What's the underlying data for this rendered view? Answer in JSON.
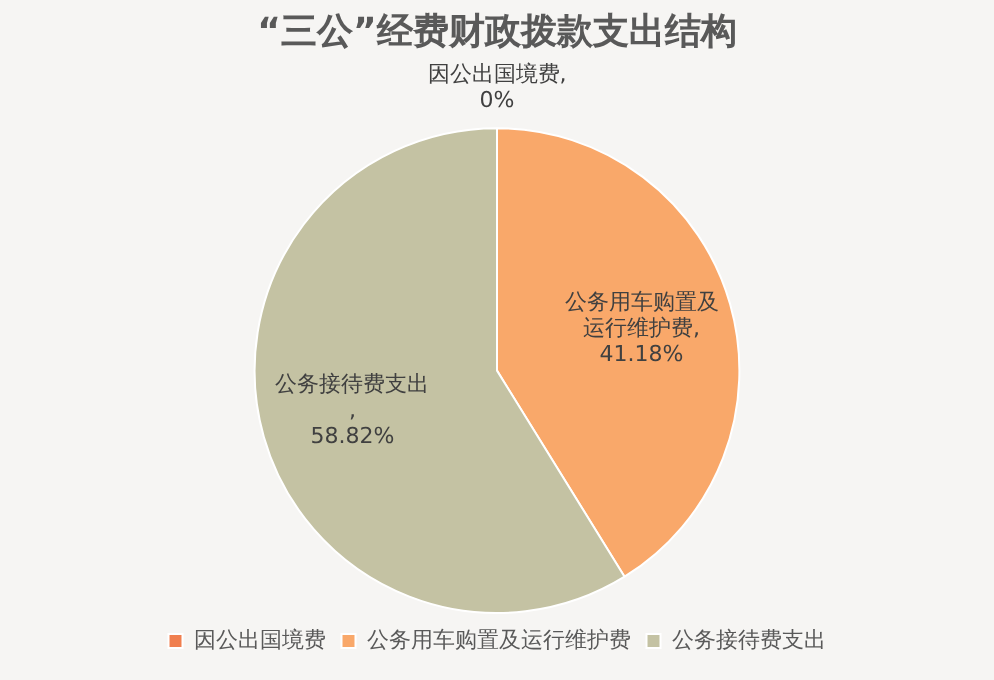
{
  "chart_data": {
    "type": "pie",
    "title": "“三公”经费财政拨款支出结构",
    "categories": [
      "因公出国境费",
      "公务用车购置及运行维护费",
      "公务接待费支出"
    ],
    "values": [
      0,
      41.18,
      58.82
    ],
    "value_labels": [
      "因公出国境费, 0%",
      "公务用车购置及运行维护费, 41.18%",
      "公务接待费支出, 58.82%"
    ],
    "colors": [
      "#f07f4f",
      "#f9a86a",
      "#c4c2a3"
    ],
    "legend": "bottom"
  }
}
